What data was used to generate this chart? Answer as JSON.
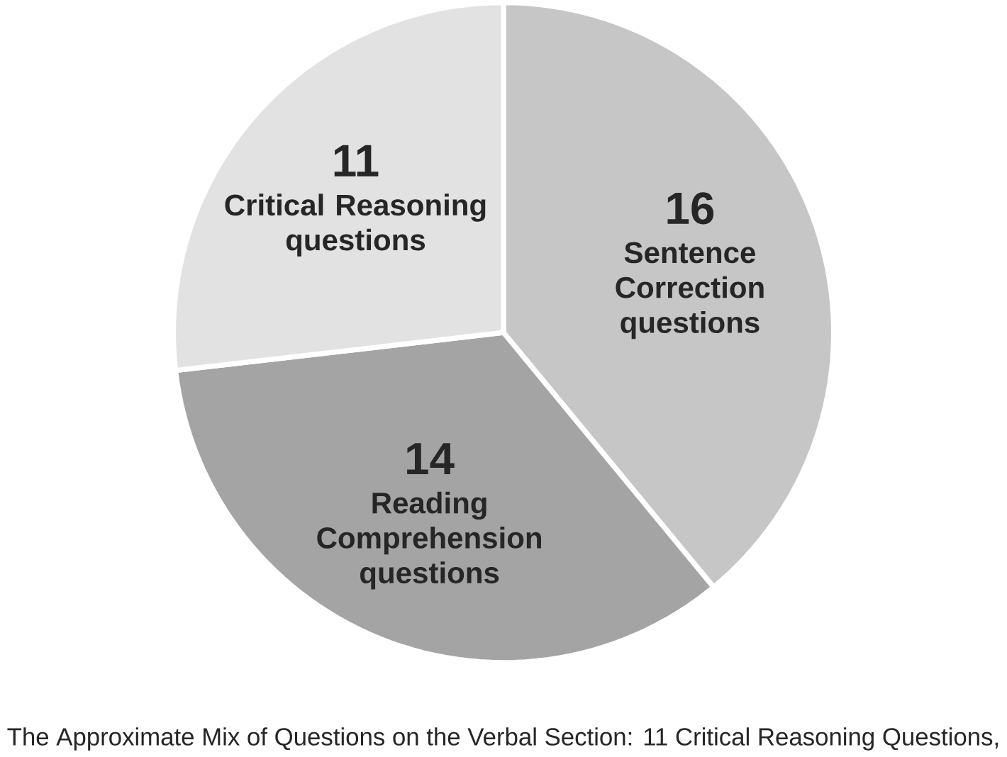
{
  "chart_data": {
    "type": "pie",
    "categories": [
      "Sentence Correction questions",
      "Reading Comprehension questions",
      "Critical Reasoning questions"
    ],
    "values": [
      16,
      14,
      11
    ],
    "colors": [
      "#c6c6c6",
      "#a4a4a4",
      "#e2e2e2"
    ],
    "data_labels": true,
    "annotations": [
      "The Approximate Mix of Questions on the Verbal Section: 11 Critical Reasoning Questions,"
    ]
  }
}
